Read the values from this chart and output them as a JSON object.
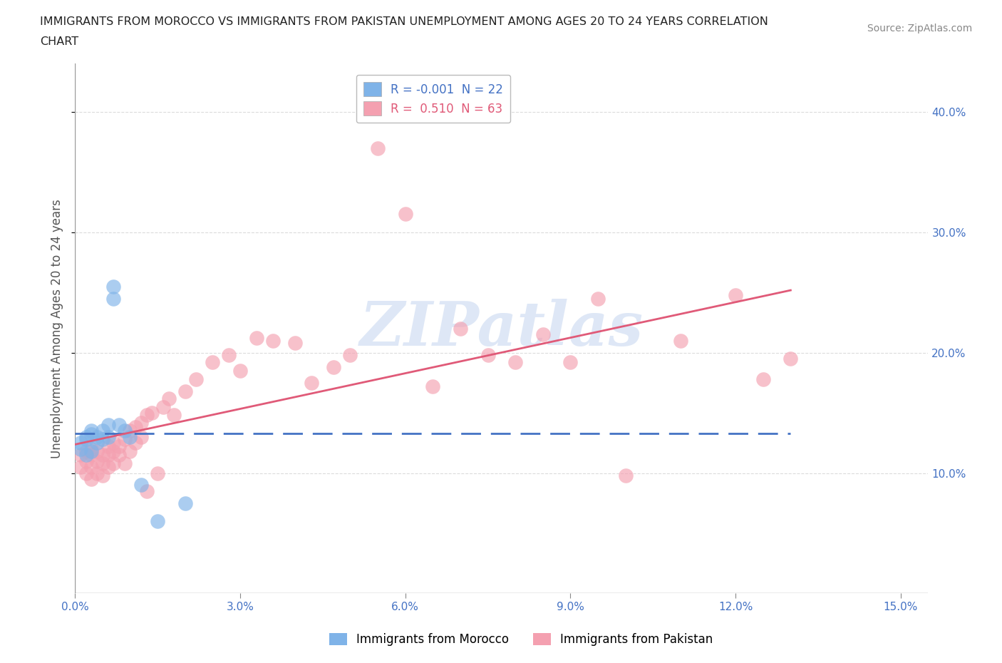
{
  "title_line1": "IMMIGRANTS FROM MOROCCO VS IMMIGRANTS FROM PAKISTAN UNEMPLOYMENT AMONG AGES 20 TO 24 YEARS CORRELATION",
  "title_line2": "CHART",
  "source": "Source: ZipAtlas.com",
  "ylabel": "Unemployment Among Ages 20 to 24 years",
  "xlim": [
    0.0,
    0.155
  ],
  "ylim": [
    0.0,
    0.44
  ],
  "xticks": [
    0.0,
    0.03,
    0.06,
    0.09,
    0.12,
    0.15
  ],
  "yticks": [
    0.1,
    0.2,
    0.3,
    0.4
  ],
  "xtick_labels": [
    "0.0%",
    "3.0%",
    "6.0%",
    "9.0%",
    "12.0%",
    "15.0%"
  ],
  "ytick_labels": [
    "10.0%",
    "20.0%",
    "30.0%",
    "40.0%"
  ],
  "morocco_color": "#7fb3e8",
  "pakistan_color": "#f4a0b0",
  "morocco_line_color": "#4472c4",
  "pakistan_line_color": "#e05a78",
  "morocco_R": -0.001,
  "morocco_N": 22,
  "pakistan_R": 0.51,
  "pakistan_N": 63,
  "watermark": "ZIPatlas",
  "watermark_color": "#c8d8f0",
  "background_color": "#ffffff",
  "grid_color": "#cccccc",
  "morocco_x": [
    0.001,
    0.001,
    0.002,
    0.002,
    0.002,
    0.003,
    0.003,
    0.003,
    0.004,
    0.004,
    0.005,
    0.005,
    0.006,
    0.006,
    0.007,
    0.007,
    0.008,
    0.009,
    0.01,
    0.012,
    0.015,
    0.02
  ],
  "morocco_y": [
    0.125,
    0.12,
    0.13,
    0.128,
    0.115,
    0.135,
    0.132,
    0.118,
    0.13,
    0.125,
    0.135,
    0.128,
    0.13,
    0.14,
    0.245,
    0.255,
    0.14,
    0.135,
    0.13,
    0.09,
    0.06,
    0.075
  ],
  "pakistan_x": [
    0.001,
    0.001,
    0.002,
    0.002,
    0.002,
    0.003,
    0.003,
    0.003,
    0.003,
    0.004,
    0.004,
    0.004,
    0.005,
    0.005,
    0.005,
    0.006,
    0.006,
    0.006,
    0.007,
    0.007,
    0.007,
    0.008,
    0.008,
    0.009,
    0.009,
    0.01,
    0.01,
    0.011,
    0.011,
    0.012,
    0.012,
    0.013,
    0.013,
    0.014,
    0.015,
    0.016,
    0.017,
    0.018,
    0.02,
    0.022,
    0.025,
    0.028,
    0.03,
    0.033,
    0.036,
    0.04,
    0.043,
    0.047,
    0.05,
    0.055,
    0.06,
    0.065,
    0.07,
    0.075,
    0.08,
    0.085,
    0.09,
    0.095,
    0.1,
    0.11,
    0.12,
    0.125,
    0.13
  ],
  "pakistan_y": [
    0.115,
    0.105,
    0.1,
    0.11,
    0.118,
    0.095,
    0.105,
    0.115,
    0.12,
    0.1,
    0.11,
    0.118,
    0.098,
    0.108,
    0.115,
    0.105,
    0.115,
    0.122,
    0.108,
    0.118,
    0.125,
    0.115,
    0.122,
    0.108,
    0.128,
    0.118,
    0.135,
    0.125,
    0.138,
    0.13,
    0.142,
    0.085,
    0.148,
    0.15,
    0.1,
    0.155,
    0.162,
    0.148,
    0.168,
    0.178,
    0.192,
    0.198,
    0.185,
    0.212,
    0.21,
    0.208,
    0.175,
    0.188,
    0.198,
    0.37,
    0.315,
    0.172,
    0.22,
    0.198,
    0.192,
    0.215,
    0.192,
    0.245,
    0.098,
    0.21,
    0.248,
    0.178,
    0.195
  ]
}
